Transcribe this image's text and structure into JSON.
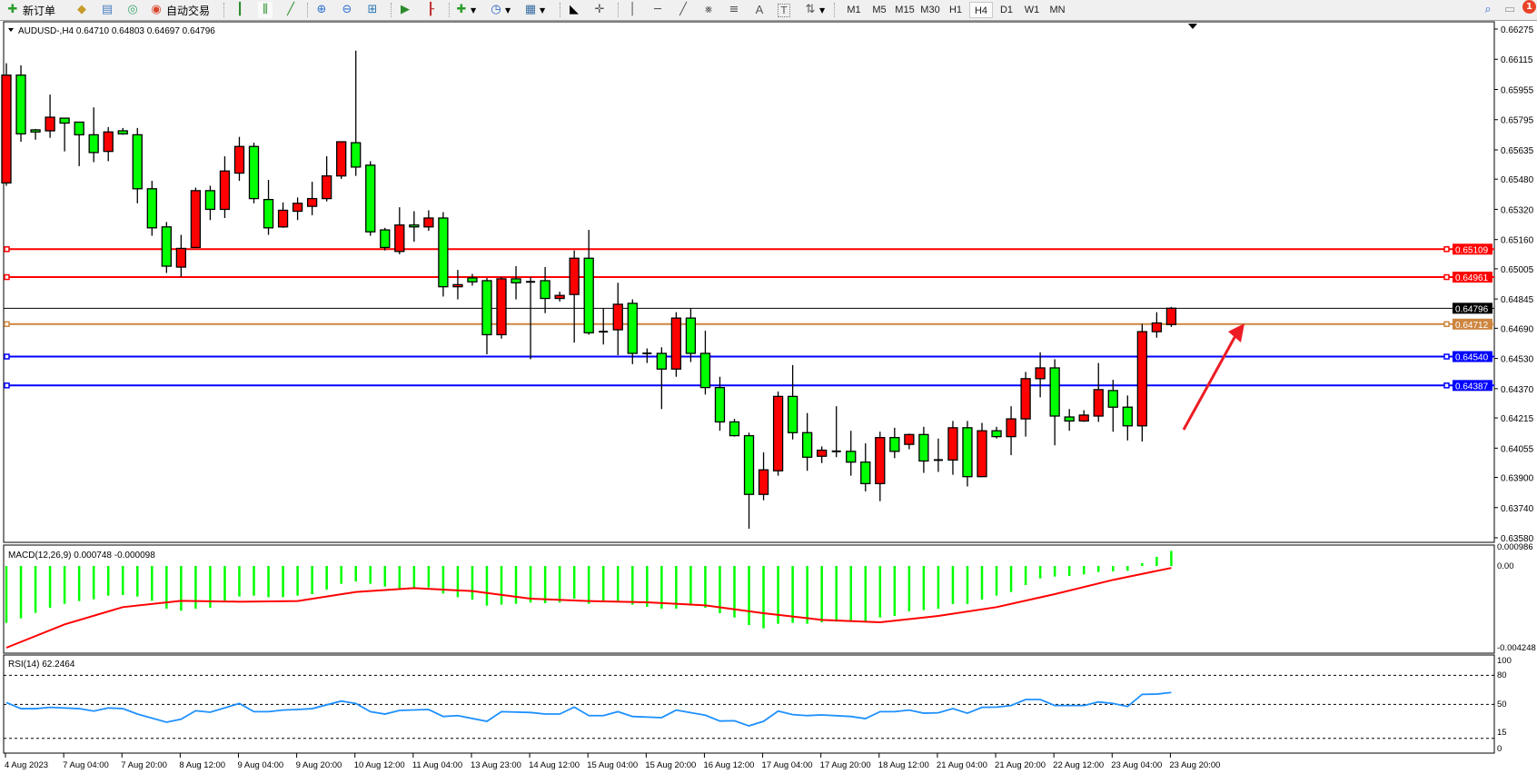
{
  "toolbar": {
    "new_order_label": "新订单",
    "auto_trade_label": "自动交易",
    "icons": [
      "new-order-icon",
      "gold-icon",
      "history-icon",
      "signals-icon",
      "auto-trade-icon",
      "bar-chart-icon",
      "candlestick-icon",
      "line-chart-icon",
      "zoom-in-icon",
      "zoom-out-icon",
      "tile-windows-icon",
      "auto-scroll-icon",
      "chart-shift-icon",
      "new-chart-icon",
      "periods-icon",
      "templates-icon",
      "cursor-icon",
      "crosshair-icon",
      "vertical-line-icon",
      "horizontal-line-icon",
      "trend-line-icon",
      "fibonacci-icon",
      "fibonacci-fan-icon",
      "text-icon",
      "text-label-icon",
      "arrows-icon",
      "search-icon",
      "chat-icon"
    ],
    "timeframes": [
      "M1",
      "M5",
      "M15",
      "M30",
      "H1",
      "H4",
      "D1",
      "W1",
      "MN"
    ],
    "active_timeframe": "H4",
    "notification_count": "1"
  },
  "chart_data": {
    "type": "candlestick",
    "symbol_header": "AUDUSD-,H4  0.64710 0.64803 0.64697 0.64796",
    "bull_color": "#ff0000",
    "bear_color": "#00ff00",
    "price_axis": [
      "0.66275",
      "0.66115",
      "0.65955",
      "0.65795",
      "0.65635",
      "0.65480",
      "0.65320",
      "0.65160",
      "0.65005",
      "0.64845",
      "0.64690",
      "0.64530",
      "0.64370",
      "0.64215",
      "0.64055",
      "0.63900",
      "0.63740",
      "0.63580"
    ],
    "ylim": [
      0.6358,
      0.66275
    ],
    "time_axis": [
      "4 Aug 2023",
      "7 Aug 04:00",
      "7 Aug 20:00",
      "8 Aug 12:00",
      "9 Aug 04:00",
      "9 Aug 20:00",
      "10 Aug 12:00",
      "11 Aug 04:00",
      "13 Aug 23:00",
      "14 Aug 12:00",
      "15 Aug 04:00",
      "15 Aug 20:00",
      "16 Aug 12:00",
      "17 Aug 04:00",
      "17 Aug 20:00",
      "18 Aug 12:00",
      "21 Aug 04:00",
      "21 Aug 20:00",
      "22 Aug 12:00",
      "23 Aug 04:00",
      "23 Aug 20:00"
    ],
    "ohlc": [
      [
        0.6546,
        0.66094,
        0.65445,
        0.66031
      ],
      [
        0.66031,
        0.66083,
        0.65678,
        0.6572
      ],
      [
        0.65741,
        0.65746,
        0.65689,
        0.6573
      ],
      [
        0.65736,
        0.65928,
        0.65699,
        0.65808
      ],
      [
        0.65803,
        0.65803,
        0.65627,
        0.65777
      ],
      [
        0.65782,
        0.65782,
        0.65549,
        0.65715
      ],
      [
        0.65715,
        0.6586,
        0.6557,
        0.65621
      ],
      [
        0.65627,
        0.65756,
        0.65575,
        0.6573
      ],
      [
        0.65736,
        0.65751,
        0.65715,
        0.6572
      ],
      [
        0.65715,
        0.65751,
        0.65352,
        0.65429
      ],
      [
        0.65429,
        0.65471,
        0.6518,
        0.65222
      ],
      [
        0.65227,
        0.65253,
        0.64983,
        0.65019
      ],
      [
        0.65014,
        0.65185,
        0.64962,
        0.65113
      ],
      [
        0.65118,
        0.65435,
        0.65118,
        0.65419
      ],
      [
        0.65419,
        0.65445,
        0.65263,
        0.6532
      ],
      [
        0.6532,
        0.65601,
        0.65274,
        0.65523
      ],
      [
        0.65512,
        0.65704,
        0.65471,
        0.65653
      ],
      [
        0.65653,
        0.65673,
        0.65352,
        0.65377
      ],
      [
        0.65372,
        0.65476,
        0.65185,
        0.65222
      ],
      [
        0.65227,
        0.65357,
        0.65222,
        0.65315
      ],
      [
        0.6531,
        0.65383,
        0.65263,
        0.65352
      ],
      [
        0.65336,
        0.65466,
        0.65289,
        0.65377
      ],
      [
        0.65377,
        0.65601,
        0.65362,
        0.65497
      ],
      [
        0.65497,
        0.65678,
        0.65481,
        0.65678
      ],
      [
        0.65673,
        0.66161,
        0.65497,
        0.65544
      ],
      [
        0.65554,
        0.65575,
        0.6518,
        0.65201
      ],
      [
        0.65211,
        0.65222,
        0.65102,
        0.65118
      ],
      [
        0.65097,
        0.65331,
        0.65082,
        0.65237
      ],
      [
        0.65237,
        0.6531,
        0.65149,
        0.65227
      ],
      [
        0.65227,
        0.65315,
        0.65206,
        0.65274
      ],
      [
        0.65274,
        0.65305,
        0.64858,
        0.6491
      ],
      [
        0.6491,
        0.64999,
        0.64843,
        0.64921
      ],
      [
        0.64957,
        0.64978,
        0.64916,
        0.64936
      ],
      [
        0.64942,
        0.64957,
        0.64552,
        0.64656
      ],
      [
        0.64656,
        0.64962,
        0.64635,
        0.64952
      ],
      [
        0.64952,
        0.65019,
        0.64843,
        0.64931
      ],
      [
        0.64936,
        0.64962,
        0.64526,
        0.64936
      ],
      [
        0.64942,
        0.65014,
        0.6477,
        0.64848
      ],
      [
        0.64848,
        0.64884,
        0.64832,
        0.64864
      ],
      [
        0.64869,
        0.65102,
        0.64614,
        0.65061
      ],
      [
        0.65061,
        0.65211,
        0.64656,
        0.64666
      ],
      [
        0.64666,
        0.64796,
        0.64604,
        0.64672
      ],
      [
        0.64682,
        0.64931,
        0.64547,
        0.64817
      ],
      [
        0.64822,
        0.64843,
        0.645,
        0.64557
      ],
      [
        0.64557,
        0.64583,
        0.64506,
        0.64557
      ],
      [
        0.64557,
        0.64589,
        0.64262,
        0.64474
      ],
      [
        0.64474,
        0.64775,
        0.64433,
        0.64744
      ],
      [
        0.64744,
        0.64796,
        0.64511,
        0.64557
      ],
      [
        0.64557,
        0.64677,
        0.64339,
        0.64376
      ],
      [
        0.64376,
        0.64433,
        0.64147,
        0.64194
      ],
      [
        0.64194,
        0.6421,
        0.64116,
        0.64121
      ],
      [
        0.64121,
        0.64137,
        0.63628,
        0.6381
      ],
      [
        0.6381,
        0.64033,
        0.63779,
        0.6394
      ],
      [
        0.63935,
        0.64355,
        0.63909,
        0.64329
      ],
      [
        0.64329,
        0.64495,
        0.64101,
        0.64137
      ],
      [
        0.64137,
        0.64241,
        0.63935,
        0.64007
      ],
      [
        0.64012,
        0.64064,
        0.63976,
        0.64044
      ],
      [
        0.64038,
        0.64277,
        0.64007,
        0.64038
      ],
      [
        0.64038,
        0.64147,
        0.63909,
        0.63981
      ],
      [
        0.63981,
        0.6408,
        0.63826,
        0.63867
      ],
      [
        0.63867,
        0.64142,
        0.63774,
        0.64111
      ],
      [
        0.64111,
        0.64163,
        0.64002,
        0.64038
      ],
      [
        0.64075,
        0.64132,
        0.64049,
        0.64127
      ],
      [
        0.64127,
        0.64168,
        0.63924,
        0.63987
      ],
      [
        0.63992,
        0.64106,
        0.63929,
        0.63992
      ],
      [
        0.63992,
        0.64199,
        0.63914,
        0.64163
      ],
      [
        0.64163,
        0.64199,
        0.63852,
        0.63904
      ],
      [
        0.63904,
        0.64189,
        0.63904,
        0.64147
      ],
      [
        0.64147,
        0.64168,
        0.64106,
        0.64116
      ],
      [
        0.64116,
        0.64277,
        0.64018,
        0.6421
      ],
      [
        0.6421,
        0.64459,
        0.64116,
        0.64423
      ],
      [
        0.64423,
        0.64563,
        0.64324,
        0.6448
      ],
      [
        0.6448,
        0.64526,
        0.6407,
        0.64225
      ],
      [
        0.6422,
        0.64262,
        0.64147,
        0.64199
      ],
      [
        0.64199,
        0.64256,
        0.64194,
        0.6423
      ],
      [
        0.64225,
        0.64506,
        0.64194,
        0.64365
      ],
      [
        0.6436,
        0.64417,
        0.64142,
        0.64272
      ],
      [
        0.64272,
        0.64334,
        0.64096,
        0.64173
      ],
      [
        0.64173,
        0.64713,
        0.6409,
        0.64672
      ],
      [
        0.64672,
        0.64775,
        0.6464,
        0.64718
      ],
      [
        0.6471,
        0.64803,
        0.64697,
        0.64796
      ]
    ],
    "horizontal_lines": [
      {
        "price": "0.65109",
        "color": "#ff0000"
      },
      {
        "price": "0.64961",
        "color": "#ff0000"
      },
      {
        "price": "0.64796",
        "color": "#000000",
        "bid": true
      },
      {
        "price": "0.64712",
        "color": "#cd853f"
      },
      {
        "price": "0.64540",
        "color": "#0000ff"
      },
      {
        "price": "0.64387",
        "color": "#0000ff"
      }
    ],
    "arrow_color": "#ed1c24",
    "macd": {
      "label": "MACD(12,26,9) 0.000748 -0.000098",
      "axis": [
        "0.000986",
        "0.00",
        "-0.004248"
      ],
      "ylim": [
        -0.004248,
        0.000986
      ],
      "histogram_color": "#00ff00",
      "signal_color": "#ff0000",
      "histogram": [
        -0.002828,
        -0.002602,
        -0.002331,
        -0.002076,
        -0.00188,
        -0.001745,
        -0.001654,
        -0.001474,
        -0.001444,
        -0.001519,
        -0.00173,
        -0.002121,
        -0.002226,
        -0.002121,
        -0.002076,
        -0.001775,
        -0.001519,
        -0.001474,
        -0.001549,
        -0.001549,
        -0.001474,
        -0.001399,
        -0.001173,
        -0.000887,
        -0.000767,
        -0.000887,
        -0.001023,
        -0.001128,
        -0.001128,
        -0.001068,
        -0.001369,
        -0.001549,
        -0.001669,
        -0.00197,
        -0.001925,
        -0.00188,
        -0.00182,
        -0.00185,
        -0.00182,
        -0.001624,
        -0.00188,
        -0.001805,
        -0.001745,
        -0.001925,
        -0.00203,
        -0.002121,
        -0.002121,
        -0.00197,
        -0.002076,
        -0.002346,
        -0.002557,
        -0.002933,
        -0.003098,
        -0.002873,
        -0.002828,
        -0.002873,
        -0.002797,
        -0.002767,
        -0.002767,
        -0.002797,
        -0.002557,
        -0.002482,
        -0.002256,
        -0.002196,
        -0.002121,
        -0.001895,
        -0.001895,
        -0.001669,
        -0.001474,
        -0.001293,
        -0.000948,
        -0.000617,
        -0.000526,
        -0.000496,
        -0.000421,
        -0.000301,
        -0.000271,
        -0.000241,
        0.000135,
        0.000451,
        0.000748
      ],
      "signal": [
        [
          0,
          -0.004061
        ],
        [
          4,
          -0.002903
        ],
        [
          8,
          -0.002045
        ],
        [
          12,
          -0.00173
        ],
        [
          16,
          -0.001775
        ],
        [
          20,
          -0.001745
        ],
        [
          24,
          -0.001293
        ],
        [
          28,
          -0.001098
        ],
        [
          32,
          -0.001248
        ],
        [
          36,
          -0.001624
        ],
        [
          40,
          -0.001745
        ],
        [
          44,
          -0.001805
        ],
        [
          48,
          -0.001955
        ],
        [
          52,
          -0.002346
        ],
        [
          56,
          -0.002677
        ],
        [
          60,
          -0.002797
        ],
        [
          64,
          -0.002482
        ],
        [
          68,
          -0.002045
        ],
        [
          72,
          -0.001399
        ],
        [
          76,
          -0.000692
        ],
        [
          80,
          -9.8e-05
        ]
      ]
    },
    "rsi": {
      "label": "RSI(14) 62.2464",
      "axis": [
        "100",
        "80",
        "50",
        "15",
        "0"
      ],
      "levels": [
        80,
        50,
        15
      ],
      "ylim": [
        0,
        100
      ],
      "color": "#1e90ff",
      "points": [
        [
          0,
          51.9
        ],
        [
          1,
          45.6
        ],
        [
          2,
          45.6
        ],
        [
          3,
          46.9
        ],
        [
          5,
          45.6
        ],
        [
          6,
          43.1
        ],
        [
          7,
          46.3
        ],
        [
          8,
          45.6
        ],
        [
          9,
          40.0
        ],
        [
          11,
          31.6
        ],
        [
          12,
          34.7
        ],
        [
          13,
          43.4
        ],
        [
          14,
          41.9
        ],
        [
          16,
          50.9
        ],
        [
          17,
          42.5
        ],
        [
          18,
          42.5
        ],
        [
          19,
          44.1
        ],
        [
          20,
          44.7
        ],
        [
          21,
          45.6
        ],
        [
          23,
          53.4
        ],
        [
          24,
          50.9
        ],
        [
          25,
          42.5
        ],
        [
          26,
          40.0
        ],
        [
          27,
          43.8
        ],
        [
          29,
          44.7
        ],
        [
          30,
          37.5
        ],
        [
          31,
          38.4
        ],
        [
          33,
          32.5
        ],
        [
          34,
          42.5
        ],
        [
          36,
          41.6
        ],
        [
          37,
          40.0
        ],
        [
          38,
          40.0
        ],
        [
          39,
          47.2
        ],
        [
          40,
          38.4
        ],
        [
          41,
          38.4
        ],
        [
          42,
          42.5
        ],
        [
          43,
          37.5
        ],
        [
          45,
          36.3
        ],
        [
          46,
          44.1
        ],
        [
          48,
          38.8
        ],
        [
          49,
          32.8
        ],
        [
          50,
          33.1
        ],
        [
          51,
          27.8
        ],
        [
          52,
          32.5
        ],
        [
          53,
          43.1
        ],
        [
          54,
          39.4
        ],
        [
          55,
          38.4
        ],
        [
          56,
          39.1
        ],
        [
          58,
          37.5
        ],
        [
          59,
          35.3
        ],
        [
          60,
          42.5
        ],
        [
          61,
          42.5
        ],
        [
          62,
          44.1
        ],
        [
          63,
          40.9
        ],
        [
          64,
          41.3
        ],
        [
          65,
          45.6
        ],
        [
          66,
          40.9
        ],
        [
          67,
          46.9
        ],
        [
          68,
          47.2
        ],
        [
          69,
          48.8
        ],
        [
          70,
          55.0
        ],
        [
          71,
          55.0
        ],
        [
          72,
          48.8
        ],
        [
          74,
          48.8
        ],
        [
          75,
          52.5
        ],
        [
          76,
          50.9
        ],
        [
          77,
          47.8
        ],
        [
          78,
          60.3
        ],
        [
          79,
          60.6
        ],
        [
          80,
          62.2464
        ]
      ]
    }
  }
}
